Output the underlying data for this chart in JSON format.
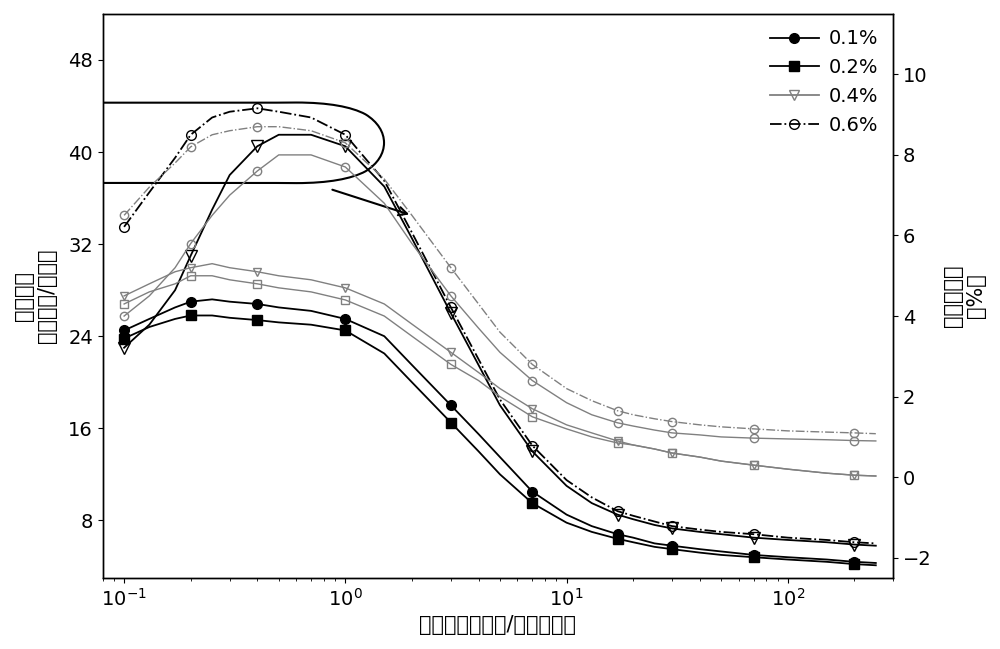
{
  "xlabel": "电流密度（毫安/平方厘米）",
  "ylabel_left": "电流效率\n（坎德拉/安培）",
  "ylabel_right": "外量子效率\n（%）",
  "xlim": [
    0.08,
    300
  ],
  "ylim_left": [
    3,
    52
  ],
  "ylim_right": [
    -2.5,
    11.5
  ],
  "yticks_left": [
    8,
    16,
    24,
    32,
    40,
    48
  ],
  "yticks_right": [
    -2,
    0,
    2,
    4,
    6,
    8,
    10
  ],
  "ce_01": {
    "x": [
      0.1,
      0.13,
      0.17,
      0.2,
      0.25,
      0.3,
      0.4,
      0.5,
      0.7,
      1.0,
      1.5,
      2.0,
      3.0,
      4.0,
      5.0,
      7.0,
      10.0,
      13.0,
      17.0,
      20.0,
      25.0,
      30.0,
      40.0,
      50.0,
      70.0,
      100.0,
      150.0,
      200.0,
      250.0
    ],
    "y": [
      24.5,
      25.5,
      26.5,
      27.0,
      27.2,
      27.0,
      26.8,
      26.5,
      26.2,
      25.5,
      24.0,
      21.5,
      18.0,
      15.5,
      13.5,
      10.5,
      8.5,
      7.5,
      6.8,
      6.5,
      6.0,
      5.8,
      5.5,
      5.3,
      5.0,
      4.8,
      4.6,
      4.4,
      4.3
    ]
  },
  "ce_02": {
    "x": [
      0.1,
      0.13,
      0.17,
      0.2,
      0.25,
      0.3,
      0.4,
      0.5,
      0.7,
      1.0,
      1.5,
      2.0,
      3.0,
      4.0,
      5.0,
      7.0,
      10.0,
      13.0,
      17.0,
      20.0,
      25.0,
      30.0,
      40.0,
      50.0,
      70.0,
      100.0,
      150.0,
      200.0,
      250.0
    ],
    "y": [
      23.8,
      24.8,
      25.5,
      25.8,
      25.8,
      25.6,
      25.4,
      25.2,
      25.0,
      24.5,
      22.5,
      20.0,
      16.5,
      14.0,
      12.0,
      9.5,
      7.8,
      7.0,
      6.4,
      6.1,
      5.7,
      5.5,
      5.2,
      5.0,
      4.8,
      4.6,
      4.4,
      4.2,
      4.1
    ]
  },
  "ce_04": {
    "x": [
      0.1,
      0.13,
      0.17,
      0.2,
      0.25,
      0.3,
      0.4,
      0.5,
      0.7,
      1.0,
      1.5,
      2.0,
      3.0,
      4.0,
      5.0,
      7.0,
      10.0,
      13.0,
      17.0,
      20.0,
      25.0,
      30.0,
      40.0,
      50.0,
      70.0,
      100.0,
      150.0,
      200.0,
      250.0
    ],
    "y": [
      23.0,
      25.0,
      28.0,
      31.0,
      35.0,
      38.0,
      40.5,
      41.5,
      41.5,
      40.5,
      37.0,
      32.5,
      26.0,
      21.5,
      18.0,
      14.0,
      11.0,
      9.5,
      8.5,
      8.1,
      7.6,
      7.3,
      7.0,
      6.8,
      6.5,
      6.3,
      6.1,
      5.9,
      5.8
    ]
  },
  "ce_06": {
    "x": [
      0.1,
      0.13,
      0.17,
      0.2,
      0.25,
      0.3,
      0.4,
      0.5,
      0.7,
      1.0,
      1.5,
      2.0,
      3.0,
      4.0,
      5.0,
      7.0,
      10.0,
      13.0,
      17.0,
      20.0,
      25.0,
      30.0,
      40.0,
      50.0,
      70.0,
      100.0,
      150.0,
      200.0,
      250.0
    ],
    "y": [
      33.5,
      36.5,
      39.5,
      41.5,
      43.0,
      43.5,
      43.8,
      43.5,
      43.0,
      41.5,
      37.5,
      33.0,
      26.5,
      22.0,
      18.5,
      14.5,
      11.5,
      10.0,
      8.8,
      8.4,
      7.9,
      7.5,
      7.2,
      7.0,
      6.8,
      6.5,
      6.3,
      6.1,
      6.0
    ]
  },
  "eqe_01": {
    "x": [
      0.1,
      0.13,
      0.17,
      0.2,
      0.25,
      0.3,
      0.4,
      0.5,
      0.7,
      1.0,
      1.5,
      2.0,
      3.0,
      4.0,
      5.0,
      7.0,
      10.0,
      13.0,
      17.0,
      20.0,
      25.0,
      30.0,
      40.0,
      50.0,
      70.0,
      100.0,
      150.0,
      200.0,
      250.0
    ],
    "y": [
      4.5,
      4.8,
      5.1,
      5.2,
      5.3,
      5.2,
      5.1,
      5.0,
      4.9,
      4.7,
      4.3,
      3.8,
      3.1,
      2.6,
      2.2,
      1.7,
      1.3,
      1.1,
      0.9,
      0.8,
      0.7,
      0.6,
      0.5,
      0.4,
      0.3,
      0.2,
      0.1,
      0.05,
      0.03
    ]
  },
  "eqe_02": {
    "x": [
      0.1,
      0.13,
      0.17,
      0.2,
      0.25,
      0.3,
      0.4,
      0.5,
      0.7,
      1.0,
      1.5,
      2.0,
      3.0,
      4.0,
      5.0,
      7.0,
      10.0,
      13.0,
      17.0,
      20.0,
      25.0,
      30.0,
      40.0,
      50.0,
      70.0,
      100.0,
      150.0,
      200.0,
      250.0
    ],
    "y": [
      4.3,
      4.6,
      4.8,
      5.0,
      5.0,
      4.9,
      4.8,
      4.7,
      4.6,
      4.4,
      4.0,
      3.5,
      2.8,
      2.4,
      2.0,
      1.5,
      1.2,
      1.0,
      0.85,
      0.8,
      0.7,
      0.6,
      0.5,
      0.4,
      0.3,
      0.2,
      0.1,
      0.05,
      0.03
    ]
  },
  "eqe_04": {
    "x": [
      0.1,
      0.13,
      0.17,
      0.2,
      0.25,
      0.3,
      0.4,
      0.5,
      0.7,
      1.0,
      1.5,
      2.0,
      3.0,
      4.0,
      5.0,
      7.0,
      10.0,
      13.0,
      17.0,
      20.0,
      25.0,
      30.0,
      40.0,
      50.0,
      70.0,
      100.0,
      150.0,
      200.0,
      250.0
    ],
    "y": [
      4.0,
      4.5,
      5.2,
      5.8,
      6.5,
      7.0,
      7.6,
      8.0,
      8.0,
      7.7,
      6.8,
      5.8,
      4.5,
      3.7,
      3.1,
      2.4,
      1.85,
      1.55,
      1.35,
      1.27,
      1.17,
      1.1,
      1.05,
      1.0,
      0.97,
      0.95,
      0.93,
      0.91,
      0.9
    ]
  },
  "eqe_06": {
    "x": [
      0.1,
      0.13,
      0.17,
      0.2,
      0.25,
      0.3,
      0.4,
      0.5,
      0.7,
      1.0,
      1.5,
      2.0,
      3.0,
      4.0,
      5.0,
      7.0,
      10.0,
      13.0,
      17.0,
      20.0,
      25.0,
      30.0,
      40.0,
      50.0,
      70.0,
      100.0,
      150.0,
      200.0,
      250.0
    ],
    "y": [
      6.5,
      7.2,
      7.8,
      8.2,
      8.5,
      8.6,
      8.7,
      8.7,
      8.6,
      8.3,
      7.4,
      6.5,
      5.2,
      4.3,
      3.6,
      2.8,
      2.2,
      1.9,
      1.65,
      1.55,
      1.45,
      1.38,
      1.3,
      1.25,
      1.2,
      1.15,
      1.12,
      1.1,
      1.08
    ]
  },
  "background_color": "#ffffff",
  "font_size": 15,
  "tick_font_size": 14
}
